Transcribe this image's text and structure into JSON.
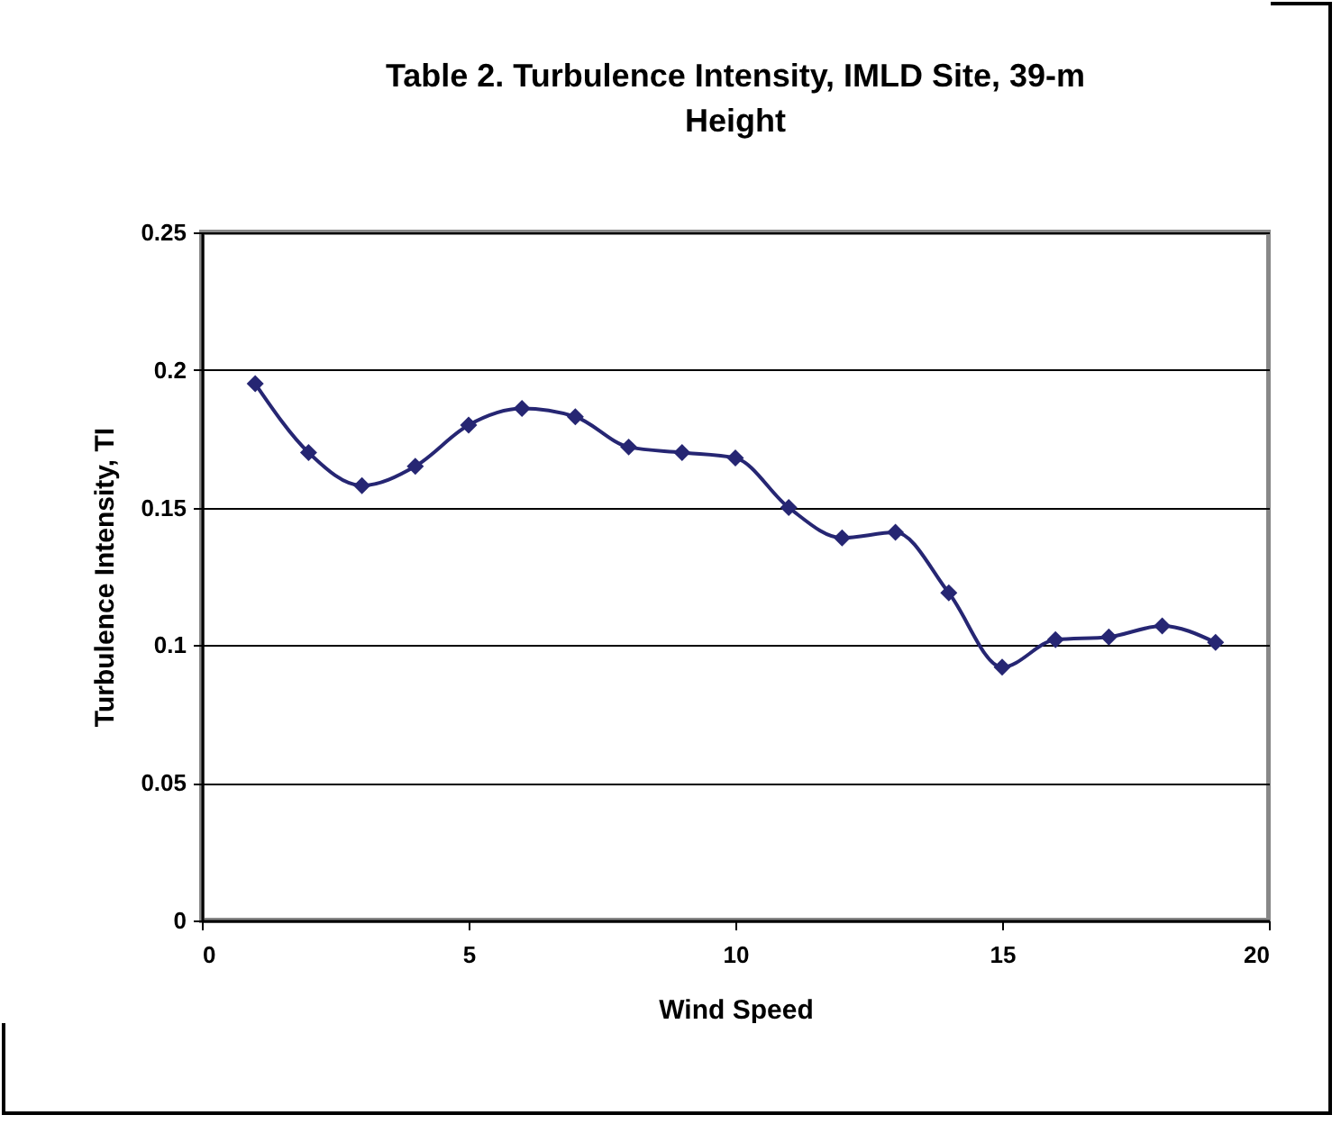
{
  "chart_data": {
    "type": "line",
    "title": "Table 2. Turbulence Intensity, IMLD Site, 39-m Height",
    "xlabel": "Wind Speed",
    "ylabel": "Turbulence Intensity, TI",
    "x": [
      1,
      2,
      3,
      4,
      5,
      6,
      7,
      8,
      9,
      10,
      11,
      12,
      13,
      14,
      15,
      16,
      17,
      18,
      19
    ],
    "series": [
      {
        "color": "#262673",
        "values": [
          0.195,
          0.17,
          0.158,
          0.165,
          0.18,
          0.186,
          0.183,
          0.172,
          0.17,
          0.168,
          0.15,
          0.139,
          0.141,
          0.119,
          0.092,
          0.102,
          0.103,
          0.107,
          0.101
        ]
      }
    ],
    "xlim": [
      0,
      20
    ],
    "xticks": [
      0,
      5,
      10,
      15,
      20
    ],
    "ylim": [
      0,
      0.25
    ],
    "yticks": [
      0,
      0.05,
      0.1,
      0.15,
      0.2,
      0.25
    ],
    "grid": "y",
    "marker": "diamond",
    "line_style": "solid"
  }
}
